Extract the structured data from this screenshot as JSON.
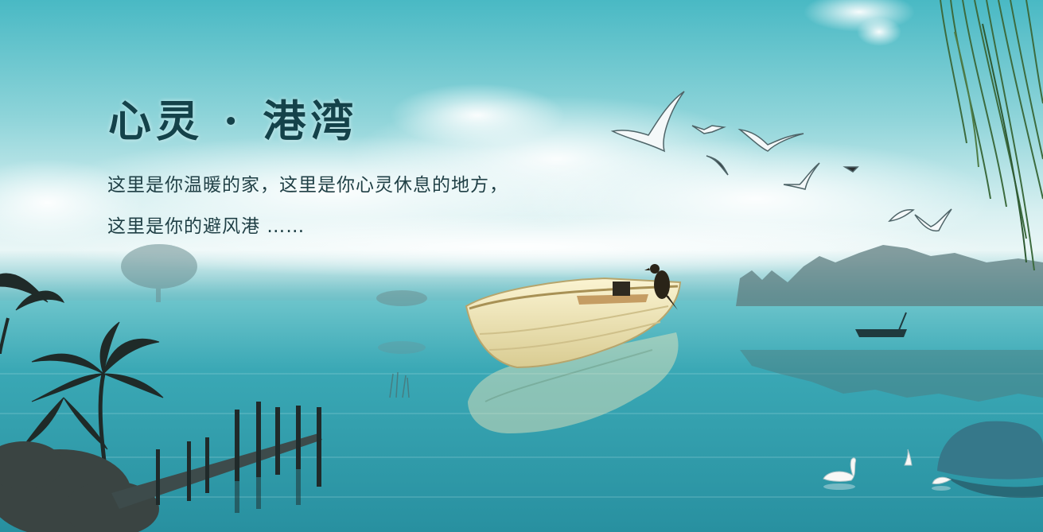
{
  "banner": {
    "title": "心灵 · 港湾",
    "lines": [
      "这里是你温暖的家，这里是你心灵休息的地方，",
      "这里是你的避风港 ……"
    ]
  },
  "colors": {
    "sky": "#49b9c4",
    "cloud": "#eef8f8",
    "water": "#2c9aa9",
    "title": "#14424a",
    "text": "#1f3f45",
    "boat": "#f1e8bd"
  },
  "icons": [
    "cloud-icon",
    "seagull-icon",
    "boat-icon",
    "cormorant-icon",
    "willow-icon",
    "palm-tree-icon",
    "pier-icon",
    "swan-icon",
    "rock-icon",
    "tree-line-icon"
  ]
}
